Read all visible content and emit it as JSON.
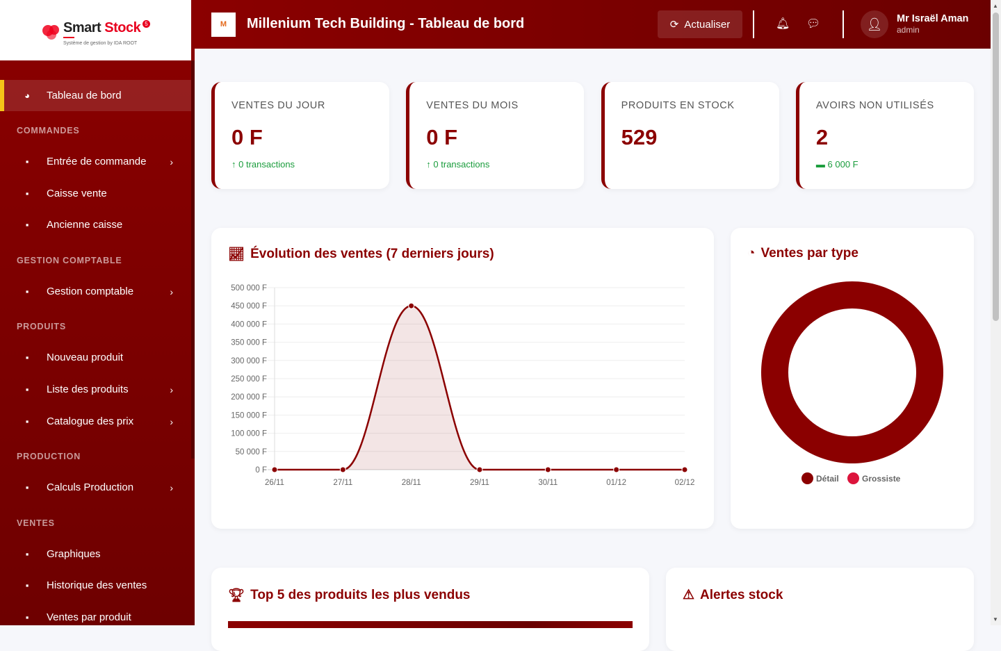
{
  "sidebar": {
    "logo": {
      "brand_a": "Smart",
      "brand_b": "Stock",
      "badge": "5",
      "tagline": "Système de gestion by IDA ROOT"
    },
    "active": {
      "label": "Tableau de bord",
      "icon": "palette-dashboard-icon"
    },
    "sections": [
      {
        "title": "COMMANDES",
        "items": [
          {
            "label": "Entrée de commande",
            "icon": "file-icon",
            "submenu": true
          },
          {
            "label": "Caisse vente",
            "icon": "cash-register-icon",
            "submenu": false
          },
          {
            "label": "Ancienne caisse",
            "icon": "history-icon",
            "submenu": false
          }
        ]
      },
      {
        "title": "GESTION COMPTABLE",
        "items": [
          {
            "label": "Gestion comptable",
            "icon": "calculator-icon",
            "submenu": true
          }
        ]
      },
      {
        "title": "PRODUITS",
        "items": [
          {
            "label": "Nouveau produit",
            "icon": "plus-circle-icon",
            "submenu": false
          },
          {
            "label": "Liste des produits",
            "icon": "boxes-icon",
            "submenu": true
          },
          {
            "label": "Catalogue des prix",
            "icon": "tags-icon",
            "submenu": true
          }
        ]
      },
      {
        "title": "PRODUCTION",
        "items": [
          {
            "label": "Calculs Production",
            "icon": "industry-icon",
            "submenu": true
          }
        ]
      },
      {
        "title": "VENTES",
        "items": [
          {
            "label": "Graphiques",
            "icon": "chart-line-icon",
            "submenu": false
          },
          {
            "label": "Historique des ventes",
            "icon": "receipt-icon",
            "submenu": false
          },
          {
            "label": "Ventes par produit",
            "icon": "bar-chart-icon",
            "submenu": false
          }
        ]
      }
    ]
  },
  "header": {
    "title": "Millenium Tech Building - Tableau de bord",
    "refresh_label": "Actualiser",
    "user_name": "Mr Israël Aman",
    "user_role": "admin"
  },
  "stats": [
    {
      "label": "VENTES DU JOUR",
      "value": "0 F",
      "foot": "0 transactions",
      "foot_icon": "arrow-up-icon"
    },
    {
      "label": "VENTES DU MOIS",
      "value": "0 F",
      "foot": "0 transactions",
      "foot_icon": "arrow-up-icon"
    },
    {
      "label": "PRODUITS EN STOCK",
      "value": "529",
      "foot": "",
      "foot_icon": ""
    },
    {
      "label": "AVOIRS NON UTILISÉS",
      "value": "2",
      "foot": "6 000 F",
      "foot_icon": "money-bill-icon"
    }
  ],
  "colors": {
    "primary": "#8b0000",
    "detail": "#8b0000",
    "grossiste": "#dc143c",
    "positive": "#1a9c3c"
  },
  "chart_data": [
    {
      "type": "area",
      "title": "Évolution des ventes (7 derniers jours)",
      "categories": [
        "26/11",
        "27/11",
        "28/11",
        "29/11",
        "30/11",
        "01/12",
        "02/12"
      ],
      "values": [
        0,
        0,
        450000,
        0,
        0,
        0,
        0
      ],
      "ylim": [
        0,
        500000
      ],
      "yticks": [
        "0 F",
        "50 000 F",
        "100 000 F",
        "150 000 F",
        "200 000 F",
        "250 000 F",
        "300 000 F",
        "350 000 F",
        "400 000 F",
        "450 000 F",
        "500 000 F"
      ],
      "grid": true
    },
    {
      "type": "pie",
      "title": "Ventes par type",
      "donut": true,
      "categories": [
        "Détail",
        "Grossiste"
      ],
      "values": [
        100,
        0
      ],
      "legend": "bottom"
    }
  ],
  "bottom": {
    "top5_title": "Top 5 des produits les plus vendus",
    "alerts_title": "Alertes stock"
  }
}
